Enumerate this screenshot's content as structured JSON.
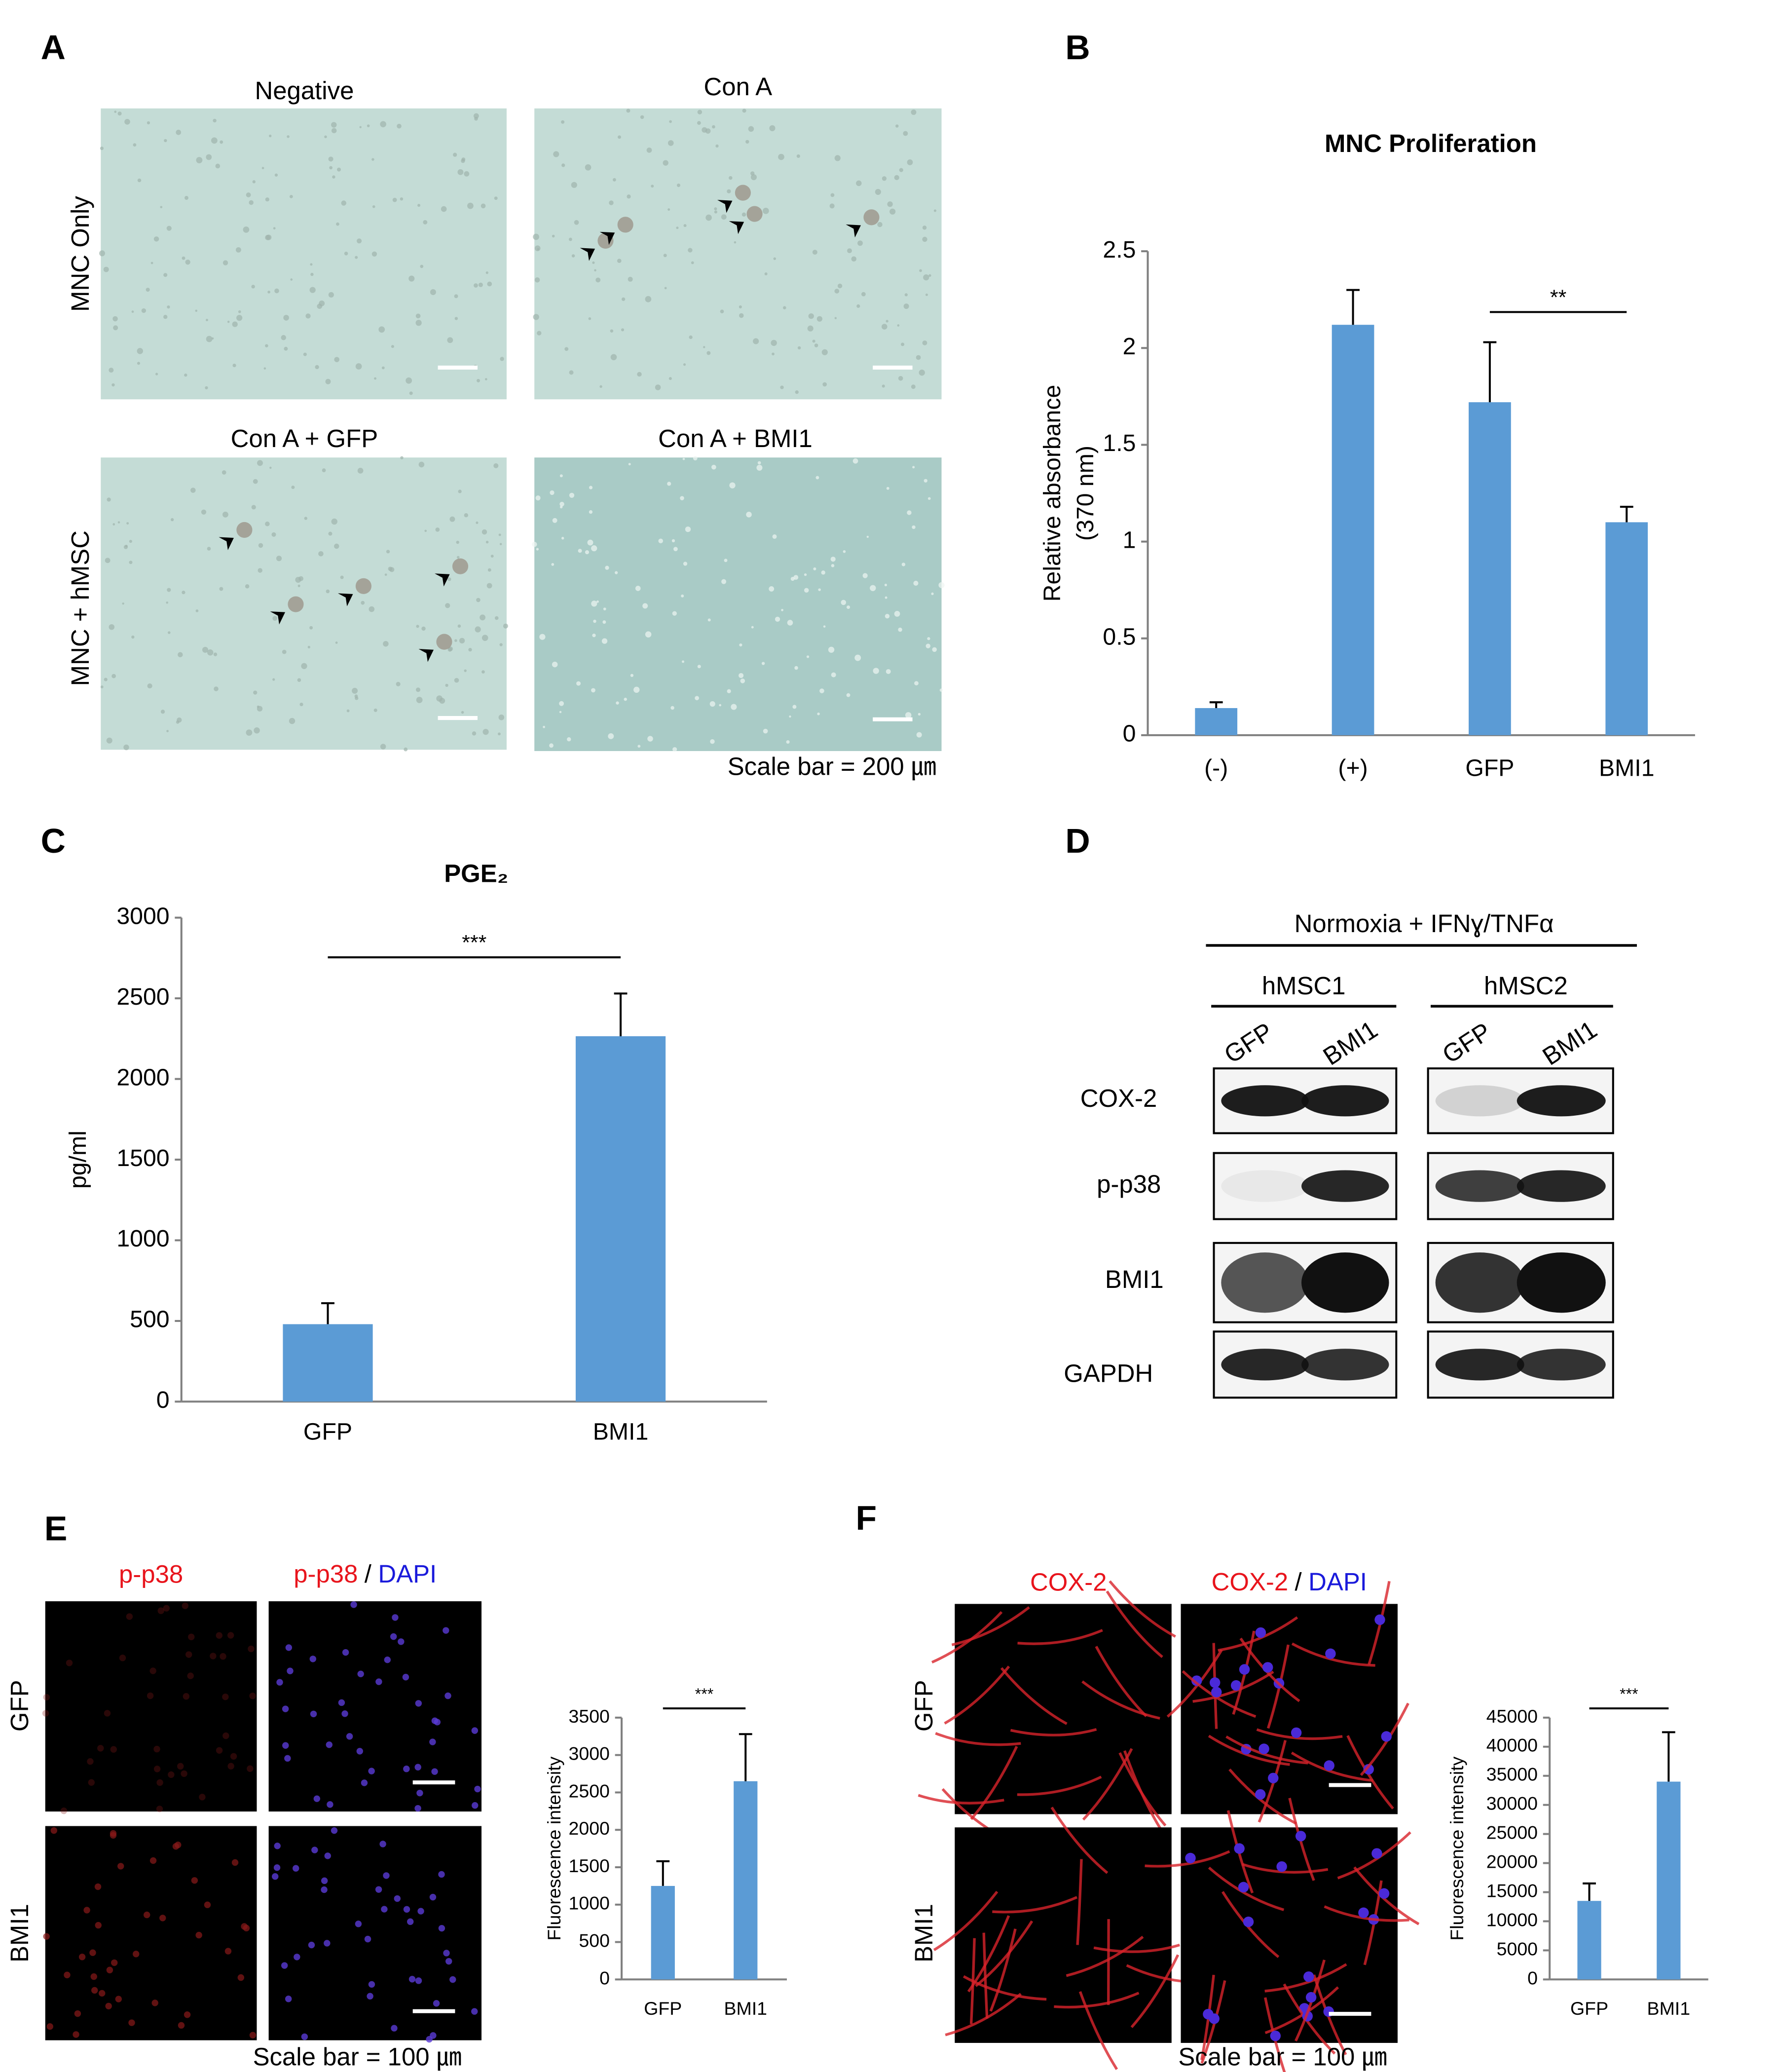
{
  "chart_data": [
    {
      "type": "bar",
      "title": "MNC Proliferation",
      "ylabel": [
        "Relative absorbance",
        "(370 nm)"
      ],
      "categories": [
        "(-)",
        "(+)",
        "GFP",
        "BMI1"
      ],
      "values": [
        0.14,
        2.12,
        1.72,
        1.1
      ],
      "errors": [
        0.03,
        0.18,
        0.31,
        0.08
      ],
      "color": "#5b9bd5",
      "ylim": [
        0,
        2.5
      ],
      "yticks": [
        0,
        0.5,
        1,
        1.5,
        2,
        2.5
      ],
      "significance": "**"
    },
    {
      "type": "bar",
      "title": "PGE₂",
      "ylabel": [
        "pg/ml"
      ],
      "categories": [
        "GFP",
        "BMI1"
      ],
      "values": [
        480,
        2265
      ],
      "errors": [
        130,
        265
      ],
      "color": "#5b9bd5",
      "ylim": [
        0,
        3000
      ],
      "yticks": [
        0,
        500,
        1000,
        1500,
        2000,
        2500,
        3000
      ],
      "significance": "***"
    },
    {
      "type": "bar",
      "ylabel": [
        "Fluorescence intensity"
      ],
      "categories": [
        "GFP",
        "BMI1"
      ],
      "values": [
        1250,
        2650
      ],
      "errors": [
        330,
        630
      ],
      "color": "#5b9bd5",
      "ylim": [
        0,
        3500
      ],
      "yticks": [
        0,
        500,
        1000,
        1500,
        2000,
        2500,
        3000,
        3500
      ],
      "significance": "***"
    },
    {
      "type": "bar",
      "ylabel": [
        "Fluorescence intensity"
      ],
      "categories": [
        "GFP",
        "BMI1"
      ],
      "values": [
        13500,
        34000
      ],
      "errors": [
        3000,
        8500
      ],
      "color": "#5b9bd5",
      "ylim": [
        0,
        45000
      ],
      "yticks": [
        0,
        5000,
        10000,
        15000,
        20000,
        25000,
        30000,
        35000,
        40000,
        45000
      ],
      "significance": "***"
    }
  ],
  "panel_labels": [
    "A",
    "B",
    "C",
    "D",
    "E",
    "F"
  ],
  "panel_a": {
    "column_titles": [
      "Negative",
      "Con A",
      "Con A + GFP",
      "Con A + BMI1"
    ],
    "row_labels": [
      "MNC Only",
      "MNC + hMSC"
    ],
    "scale_note": "Scale bar = 200 ㎛"
  },
  "panel_d": {
    "condition": "Normoxia + IFNɣ/TNFα",
    "groups": [
      {
        "name": "hMSC1",
        "lanes": [
          "GFP",
          "BMI1"
        ]
      },
      {
        "name": "hMSC2",
        "lanes": [
          "GFP",
          "BMI1"
        ]
      }
    ],
    "rows": [
      "COX-2",
      "p-p38",
      "BMI1",
      "GAPDH"
    ]
  },
  "panel_e": {
    "stain": "p-p38",
    "separator": "/",
    "counterstain": "DAPI",
    "row_labels": [
      "GFP",
      "BMI1"
    ],
    "scale_note": "Scale bar = 100 ㎛"
  },
  "panel_f": {
    "stain": "COX-2",
    "separator": "/",
    "counterstain": "DAPI",
    "row_labels": [
      "GFP",
      "BMI1"
    ],
    "scale_note": "Scale bar = 100 ㎛"
  }
}
